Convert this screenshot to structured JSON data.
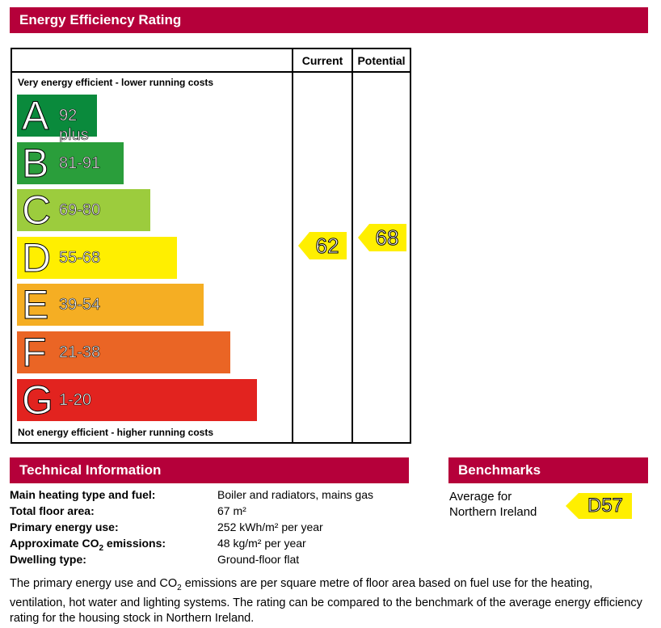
{
  "header": {
    "title": "Energy Efficiency Rating"
  },
  "table": {
    "col_current": "Current",
    "col_potential": "Potential",
    "top_note": "Very energy efficient - lower running costs",
    "bottom_note": "Not energy efficient - higher running costs"
  },
  "chart_data": {
    "type": "bar",
    "title": "Energy Efficiency Rating",
    "bands": [
      {
        "letter": "A",
        "range": "92 plus",
        "color": "#0a8a3c",
        "length": 1
      },
      {
        "letter": "B",
        "range": "81-91",
        "color": "#2a9e3b",
        "length": 2
      },
      {
        "letter": "C",
        "range": "69-80",
        "color": "#9ccc3d",
        "length": 3
      },
      {
        "letter": "D",
        "range": "55-68",
        "color": "#ffef00",
        "length": 4
      },
      {
        "letter": "E",
        "range": "39-54",
        "color": "#f5ae23",
        "length": 5
      },
      {
        "letter": "F",
        "range": "21-38",
        "color": "#ea6525",
        "length": 6
      },
      {
        "letter": "G",
        "range": "1-20",
        "color": "#e2231f",
        "length": 7
      }
    ],
    "current": {
      "value": "62",
      "band": "D"
    },
    "potential": {
      "value": "68",
      "band": "D"
    },
    "arrow_color": "#ffef00"
  },
  "technical": {
    "title": "Technical Information",
    "rows": [
      {
        "label": "Main heating type and fuel:",
        "value": "Boiler and radiators, mains gas"
      },
      {
        "label": "Total floor area:",
        "value": "67 m²"
      },
      {
        "label": "Primary energy use:",
        "value": "252 kWh/m² per year"
      },
      {
        "label_pre": "Approximate CO",
        "label_sub": "2",
        "label_post": " emissions:",
        "value": "48 kg/m² per year"
      },
      {
        "label": "Dwelling type:",
        "value": "Ground-floor flat"
      }
    ]
  },
  "benchmarks": {
    "title": "Benchmarks",
    "line1": "Average for",
    "line2": "Northern Ireland",
    "value": "D57"
  },
  "footnote": {
    "pre": "The primary energy use and CO",
    "sub": "2",
    "post": " emissions are per square metre of floor area based on fuel use for the heating, ventilation, hot water and lighting systems. The rating can be compared to the benchmark of the average energy efficiency rating for the housing stock in Northern Ireland."
  }
}
